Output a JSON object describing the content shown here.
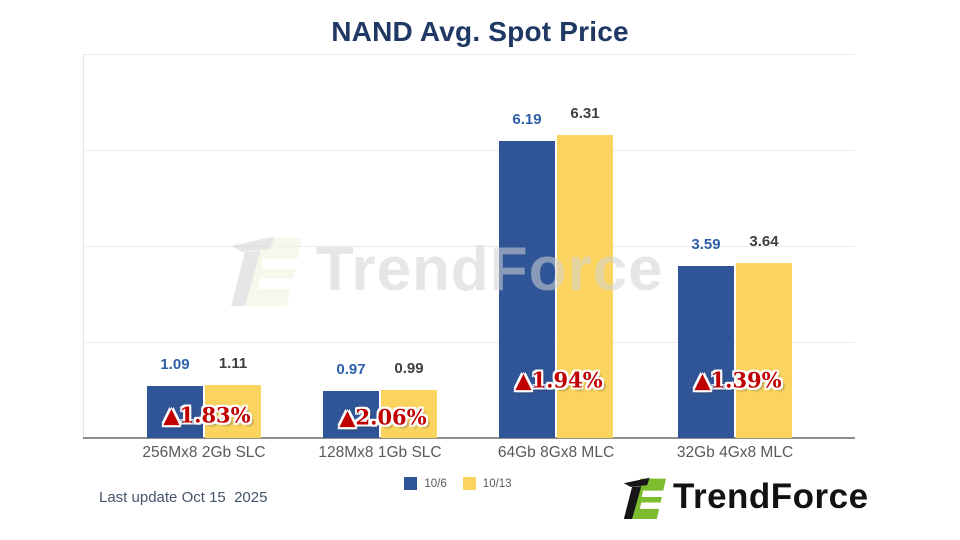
{
  "title": "NAND Avg. Spot Price",
  "colors": {
    "series_blue": "#2F5597",
    "series_yellow": "#FAD45E",
    "change_red": "#C00000",
    "title_navy": "#1F3864",
    "logo_green": "#7DBB2F"
  },
  "footer": {
    "last_update": "Last update Oct 15  2025"
  },
  "brand": {
    "wordmark": "TrendForce"
  },
  "watermark": {
    "wordmark": "TrendForce"
  },
  "chart_data": {
    "type": "bar",
    "title": "NAND Avg. Spot Price",
    "categories": [
      "256Mx8 2Gb SLC",
      "128Mx8 1Gb SLC",
      "64Gb 8Gx8 MLC",
      "32Gb 4Gx8 MLC"
    ],
    "series": [
      {
        "name": "10/6",
        "color": "#2F5597",
        "values": [
          1.09,
          0.97,
          6.19,
          3.59
        ]
      },
      {
        "name": "10/13",
        "color": "#FAD45E",
        "values": [
          1.11,
          0.99,
          6.31,
          3.64
        ]
      }
    ],
    "change_labels": [
      "▲1.83%",
      "▲2.06%",
      "▲1.94%",
      "▲1.39%"
    ],
    "xlabel": "",
    "ylabel": "",
    "ylim": [
      0,
      8
    ],
    "gridline_values": [
      2,
      4,
      6,
      8
    ],
    "grid": "on",
    "legend_position": "bottom-center"
  }
}
